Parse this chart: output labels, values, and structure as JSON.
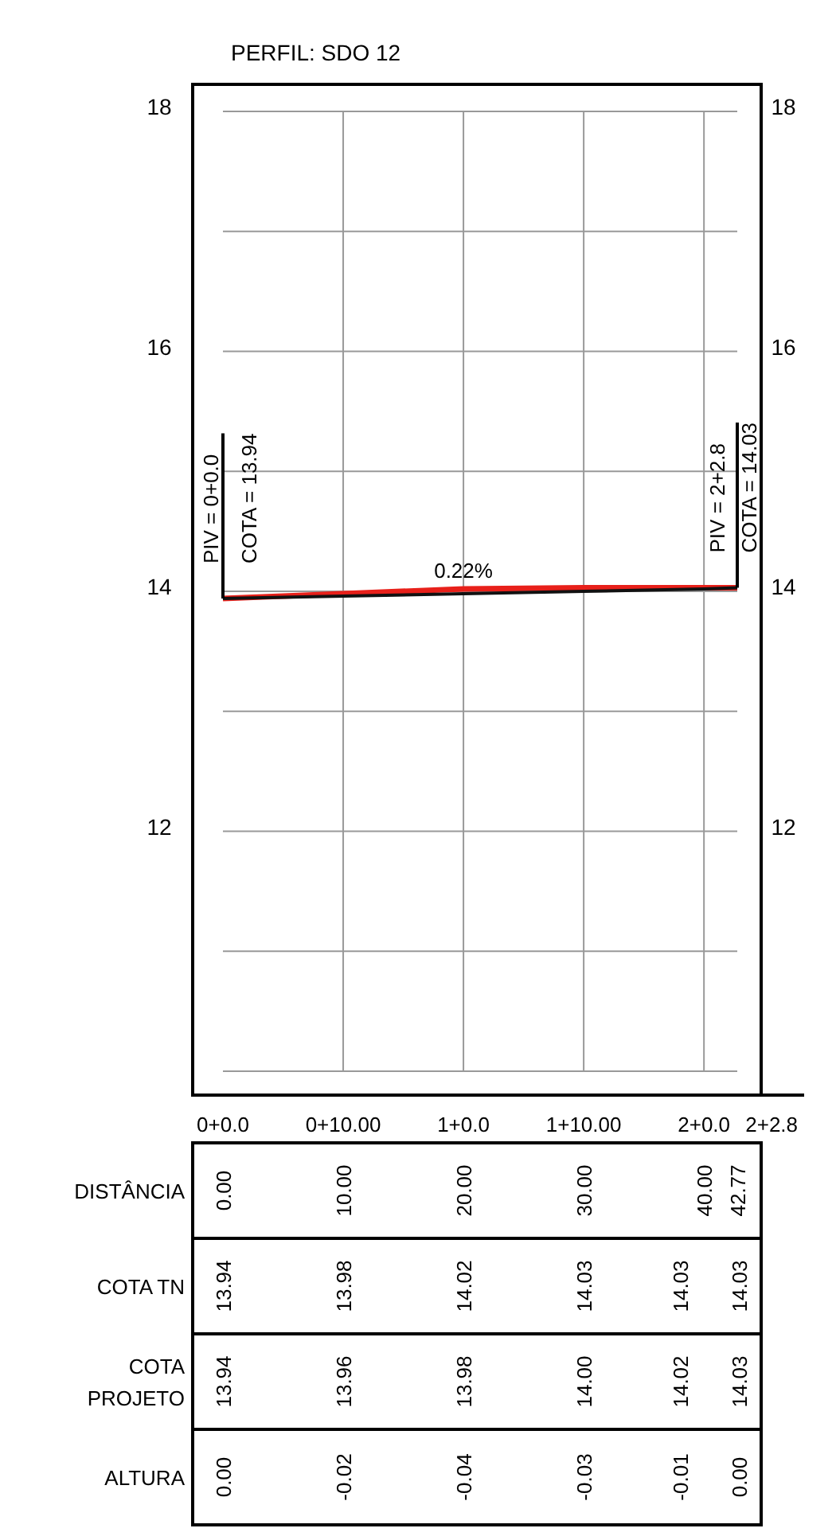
{
  "chart_data": {
    "type": "line",
    "title": "PERFIL: SDO 12",
    "xlabel": "DISTÂNCIA",
    "x": [
      0,
      10,
      20,
      30,
      40,
      42.77
    ],
    "series": [
      {
        "color": "#e8201a",
        "values": [
          13.94,
          13.98,
          14.02,
          14.03,
          14.03,
          14.03
        ]
      },
      {
        "color": "#111111",
        "values": [
          13.94,
          13.96,
          13.98,
          14.0,
          14.02,
          14.03
        ]
      }
    ],
    "xlim": [
      0,
      42.77
    ],
    "xticks": [
      {
        "value": 0,
        "label": "0.00"
      },
      {
        "value": 10,
        "label": "10.00"
      },
      {
        "value": 20,
        "label": "20.00"
      },
      {
        "value": 30,
        "label": "30.00"
      },
      {
        "value": 40,
        "label": "40.00"
      },
      {
        "value": 42.77,
        "label": "42.77"
      }
    ],
    "ylim": [
      10,
      18
    ],
    "yticks": [
      {
        "value": 10,
        "label": null
      },
      {
        "value": 11,
        "label": null
      },
      12,
      {
        "value": 13,
        "label": null
      },
      14,
      {
        "value": 15,
        "label": null
      },
      16,
      {
        "value": 17,
        "label": null
      },
      18
    ],
    "y2lim": [
      10,
      18
    ],
    "y2ticks": [
      12,
      14,
      16,
      18
    ],
    "grid": true,
    "ref_lines": [
      {
        "axis": "x",
        "value": 0,
        "color": "#000000"
      },
      {
        "axis": "x",
        "value": 42.77,
        "color": "#000000"
      }
    ],
    "annotations": [
      {
        "text": "PIV = 0+0.0",
        "x": 0,
        "y": 13.94
      },
      {
        "text": "COTA =  13.94",
        "x": 0,
        "y": 13.94
      },
      {
        "text": "PIV = 2+2.8",
        "x": 42.77,
        "y": 14.03
      },
      {
        "text": "COTA =  14.03",
        "x": 42.77,
        "y": 14.03
      },
      {
        "text": "0.22%",
        "x": 20,
        "y": 13.98
      },
      "0+0.0",
      "0+10.00",
      "1+0.0",
      "1+10.00",
      "2+0.0",
      "2+2.8",
      "COTA TN",
      "13.94",
      "13.98",
      "14.02",
      "14.03",
      "14.03",
      "14.03",
      "COTA PROJETO",
      "13.94",
      "13.96",
      "13.98",
      "14.00",
      "14.02",
      "14.03",
      "ALTURA",
      "0.00",
      "-0.02",
      "-0.04",
      "-0.03",
      "-0.01",
      "0.00"
    ]
  }
}
